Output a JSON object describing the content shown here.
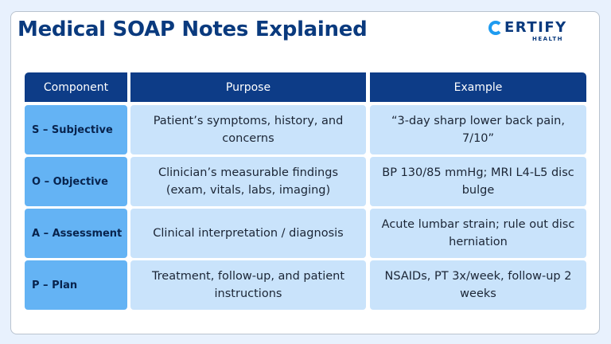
{
  "title": "Medical SOAP Notes Explained",
  "logo": {
    "main": "ERTIFY",
    "sub": "HEALTH"
  },
  "table": {
    "headers": [
      "Component",
      "Purpose",
      "Example"
    ],
    "rows": [
      {
        "component": "S – Subjective",
        "purpose": "Patient’s symptoms, history, and concerns",
        "example": "“3-day sharp lower back pain, 7/10”"
      },
      {
        "component": "O – Objective",
        "purpose": "Clinician’s measurable findings (exam, vitals, labs, imaging)",
        "example": "BP 130/85 mmHg; MRI L4-L5 disc bulge"
      },
      {
        "component": "A – Assessment",
        "purpose": "Clinical interpretation / diagnosis",
        "example": "Acute lumbar strain; rule out disc herniation"
      },
      {
        "component": "P – Plan",
        "purpose": "Treatment, follow-up, and patient instructions",
        "example": "NSAIDs, PT 3x/week, follow-up 2 weeks"
      }
    ]
  },
  "colors": {
    "header_bg": "#0d3c87",
    "label_bg": "#64b3f4",
    "cell_bg": "#c9e3fb",
    "title": "#0a3a7e"
  }
}
